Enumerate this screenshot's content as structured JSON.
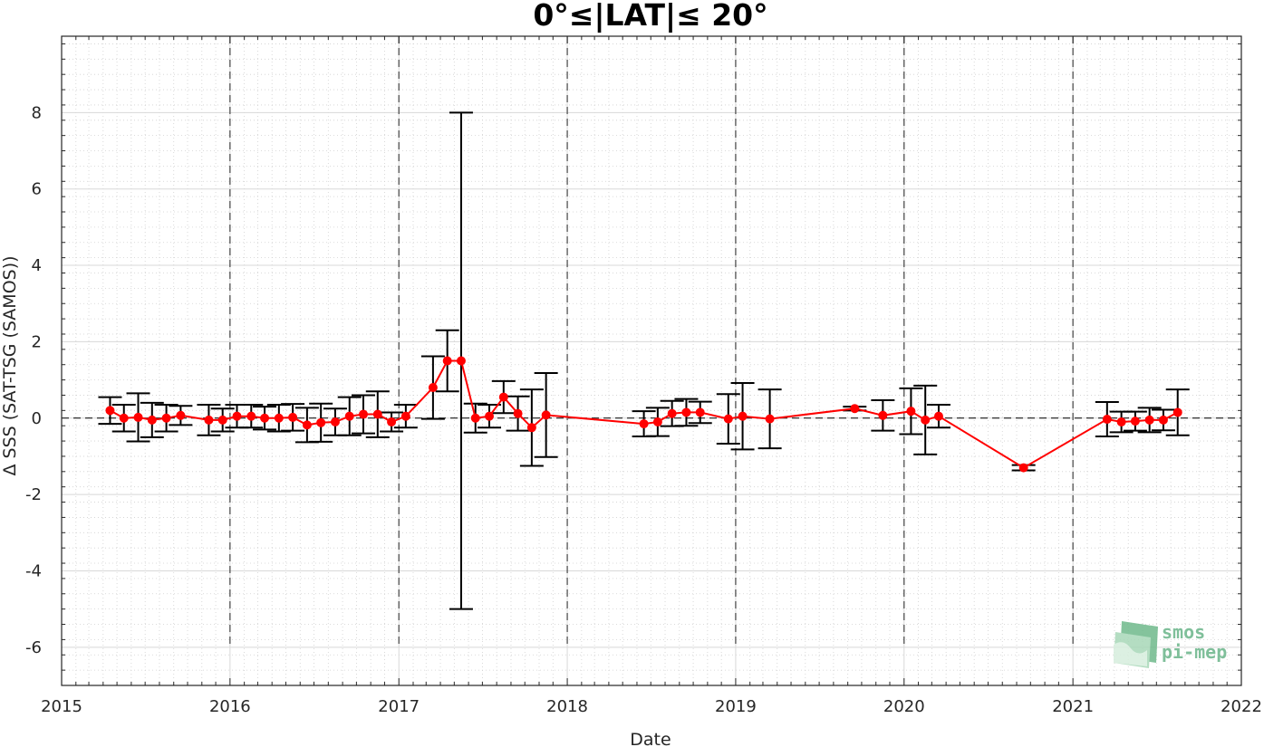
{
  "chart_data": {
    "type": "line",
    "title": "0°≤|LAT|≤ 20°",
    "xlabel": "Date",
    "ylabel": "Δ SSS (SAT-TSG (SAMOS))",
    "x_tick_labels": [
      "2015",
      "2016",
      "2017",
      "2018",
      "2019",
      "2020",
      "2021",
      "2022"
    ],
    "y_tick_labels": [
      "-6",
      "-4",
      "-2",
      "0",
      "2",
      "4",
      "6",
      "8"
    ],
    "xlim": [
      "2015-01-01",
      "2022-01-01"
    ],
    "ylim": [
      -7,
      10
    ],
    "grid": true,
    "reference_line_y": 0,
    "year_separator_lines": [
      "2016",
      "2017",
      "2018",
      "2019",
      "2020",
      "2021"
    ],
    "series": [
      {
        "color": "#ff0000",
        "points": [
          {
            "x": "2015-04-16",
            "y": 0.2,
            "err": 0.35
          },
          {
            "x": "2015-05-16",
            "y": 0.0,
            "err": 0.35
          },
          {
            "x": "2015-06-16",
            "y": 0.02,
            "err": 0.63
          },
          {
            "x": "2015-07-16",
            "y": -0.05,
            "err": 0.45
          },
          {
            "x": "2015-08-16",
            "y": 0.0,
            "err": 0.35
          },
          {
            "x": "2015-09-16",
            "y": 0.07,
            "err": 0.25
          },
          {
            "x": "2015-11-16",
            "y": -0.05,
            "err": 0.4
          },
          {
            "x": "2015-12-16",
            "y": -0.05,
            "err": 0.3
          },
          {
            "x": "2016-01-16",
            "y": 0.05,
            "err": 0.3
          },
          {
            "x": "2016-02-16",
            "y": 0.05,
            "err": 0.3
          },
          {
            "x": "2016-03-16",
            "y": 0.0,
            "err": 0.3
          },
          {
            "x": "2016-04-16",
            "y": 0.0,
            "err": 0.35
          },
          {
            "x": "2016-05-16",
            "y": 0.02,
            "err": 0.35
          },
          {
            "x": "2016-06-16",
            "y": -0.18,
            "err": 0.45
          },
          {
            "x": "2016-07-16",
            "y": -0.12,
            "err": 0.5
          },
          {
            "x": "2016-08-16",
            "y": -0.1,
            "err": 0.35
          },
          {
            "x": "2016-09-16",
            "y": 0.05,
            "err": 0.5
          },
          {
            "x": "2016-10-16",
            "y": 0.1,
            "err": 0.5
          },
          {
            "x": "2016-11-16",
            "y": 0.1,
            "err": 0.6
          },
          {
            "x": "2016-12-16",
            "y": -0.1,
            "err": 0.25
          },
          {
            "x": "2017-01-16",
            "y": 0.05,
            "err": 0.3
          },
          {
            "x": "2017-03-16",
            "y": 0.8,
            "err": 0.82
          },
          {
            "x": "2017-04-16",
            "y": 1.5,
            "err": 0.8
          },
          {
            "x": "2017-05-16",
            "y": 1.5,
            "err": 6.5
          },
          {
            "x": "2017-06-16",
            "y": 0.0,
            "err": 0.38
          },
          {
            "x": "2017-07-16",
            "y": 0.05,
            "err": 0.3
          },
          {
            "x": "2017-08-16",
            "y": 0.55,
            "err": 0.42
          },
          {
            "x": "2017-09-16",
            "y": 0.12,
            "err": 0.45
          },
          {
            "x": "2017-10-16",
            "y": -0.25,
            "err": 1.0
          },
          {
            "x": "2017-11-16",
            "y": 0.08,
            "err": 1.1
          },
          {
            "x": "2018-06-16",
            "y": -0.15,
            "err": 0.33
          },
          {
            "x": "2018-07-16",
            "y": -0.1,
            "err": 0.37
          },
          {
            "x": "2018-08-16",
            "y": 0.12,
            "err": 0.33
          },
          {
            "x": "2018-09-16",
            "y": 0.15,
            "err": 0.35
          },
          {
            "x": "2018-10-16",
            "y": 0.15,
            "err": 0.28
          },
          {
            "x": "2018-12-16",
            "y": -0.02,
            "err": 0.65
          },
          {
            "x": "2019-01-16",
            "y": 0.05,
            "err": 0.87
          },
          {
            "x": "2019-03-16",
            "y": -0.02,
            "err": 0.77
          },
          {
            "x": "2019-09-16",
            "y": 0.25,
            "err": 0.05
          },
          {
            "x": "2019-11-16",
            "y": 0.07,
            "err": 0.4
          },
          {
            "x": "2020-01-16",
            "y": 0.18,
            "err": 0.6
          },
          {
            "x": "2020-02-16",
            "y": -0.05,
            "err": 0.9
          },
          {
            "x": "2020-03-16",
            "y": 0.05,
            "err": 0.3
          },
          {
            "x": "2020-09-16",
            "y": -1.3,
            "err": 0.07
          },
          {
            "x": "2021-03-16",
            "y": -0.03,
            "err": 0.45
          },
          {
            "x": "2021-04-16",
            "y": -0.1,
            "err": 0.27
          },
          {
            "x": "2021-05-16",
            "y": -0.08,
            "err": 0.25
          },
          {
            "x": "2021-06-16",
            "y": -0.05,
            "err": 0.32
          },
          {
            "x": "2021-07-16",
            "y": -0.05,
            "err": 0.27
          },
          {
            "x": "2021-08-16",
            "y": 0.15,
            "err": 0.6
          }
        ]
      }
    ]
  },
  "logo": {
    "line1": "smos",
    "line2": "pi-mep",
    "color": "#7fbf9a"
  }
}
